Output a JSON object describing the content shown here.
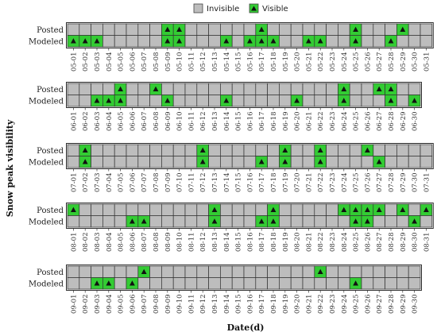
{
  "chart_data": {
    "type": "heatmap",
    "ylabel": "Snow peak visibility",
    "xlabel": "Date(d)",
    "legend": {
      "placement": "top-center",
      "entries": [
        {
          "label": "Invisible",
          "color": "#bdbdbd"
        },
        {
          "label": "Visible",
          "color": "#33cc33"
        }
      ]
    },
    "rows": [
      "Posted",
      "Modeled"
    ],
    "colors": {
      "invisible": "#bdbdbd",
      "visible": "#33cc33",
      "marker": "#111111",
      "border": "#333333"
    },
    "panels": [
      {
        "days": [
          "05-01",
          "05-02",
          "05-03",
          "05-04",
          "05-05",
          "05-06",
          "05-07",
          "05-08",
          "05-09",
          "05-10",
          "05-11",
          "05-12",
          "05-13",
          "05-14",
          "05-15",
          "05-16",
          "05-17",
          "05-18",
          "05-19",
          "05-20",
          "05-21",
          "05-22",
          "05-23",
          "05-24",
          "05-25",
          "05-26",
          "05-27",
          "05-28",
          "05-29",
          "05-30",
          "05-31"
        ],
        "posted_visible": [
          "05-09",
          "05-10",
          "05-17",
          "05-25",
          "05-29"
        ],
        "modeled_visible": [
          "05-01",
          "05-02",
          "05-03",
          "05-09",
          "05-10",
          "05-14",
          "05-16",
          "05-17",
          "05-18",
          "05-21",
          "05-22",
          "05-25",
          "05-28"
        ]
      },
      {
        "days": [
          "06-01",
          "06-02",
          "06-03",
          "06-04",
          "06-05",
          "06-06",
          "06-07",
          "06-08",
          "06-09",
          "06-10",
          "06-11",
          "06-12",
          "06-13",
          "06-14",
          "06-15",
          "06-16",
          "06-17",
          "06-18",
          "06-19",
          "06-20",
          "06-21",
          "06-22",
          "06-23",
          "06-24",
          "06-25",
          "06-26",
          "06-27",
          "06-28",
          "06-29",
          "06-30"
        ],
        "posted_visible": [
          "06-05",
          "06-08",
          "06-24",
          "06-27",
          "06-28"
        ],
        "modeled_visible": [
          "06-03",
          "06-04",
          "06-05",
          "06-09",
          "06-14",
          "06-20",
          "06-24",
          "06-28",
          "06-30"
        ]
      },
      {
        "days": [
          "07-01",
          "07-02",
          "07-03",
          "07-04",
          "07-05",
          "07-06",
          "07-07",
          "07-08",
          "07-09",
          "07-10",
          "07-11",
          "07-12",
          "07-13",
          "07-14",
          "07-15",
          "07-16",
          "07-17",
          "07-18",
          "07-19",
          "07-20",
          "07-21",
          "07-22",
          "07-23",
          "07-24",
          "07-25",
          "07-26",
          "07-27",
          "07-28",
          "07-29",
          "07-30",
          "07-31"
        ],
        "posted_visible": [
          "07-02",
          "07-12",
          "07-19",
          "07-22",
          "07-26"
        ],
        "modeled_visible": [
          "07-02",
          "07-12",
          "07-17",
          "07-19",
          "07-22",
          "07-27"
        ]
      },
      {
        "days": [
          "08-01",
          "08-02",
          "08-03",
          "08-04",
          "08-05",
          "08-06",
          "08-07",
          "08-08",
          "08-09",
          "08-10",
          "08-11",
          "08-12",
          "08-13",
          "08-14",
          "08-15",
          "08-16",
          "08-17",
          "08-18",
          "08-19",
          "08-20",
          "08-21",
          "08-22",
          "08-23",
          "08-24",
          "08-25",
          "08-26",
          "08-27",
          "08-28",
          "08-29",
          "08-30",
          "08-31"
        ],
        "posted_visible": [
          "08-01",
          "08-13",
          "08-18",
          "08-24",
          "08-25",
          "08-26",
          "08-27",
          "08-29",
          "08-31"
        ],
        "modeled_visible": [
          "08-06",
          "08-07",
          "08-13",
          "08-17",
          "08-18",
          "08-25",
          "08-26",
          "08-30"
        ]
      },
      {
        "days": [
          "09-01",
          "09-02",
          "09-03",
          "09-04",
          "09-05",
          "09-06",
          "09-07",
          "09-08",
          "09-09",
          "09-10",
          "09-11",
          "09-12",
          "09-13",
          "09-14",
          "09-15",
          "09-16",
          "09-17",
          "09-18",
          "09-19",
          "09-20",
          "09-21",
          "09-22",
          "09-23",
          "09-24",
          "09-25",
          "09-26",
          "09-27",
          "09-28",
          "09-29",
          "09-30"
        ],
        "posted_visible": [
          "09-07",
          "09-22"
        ],
        "modeled_visible": [
          "09-03",
          "09-04",
          "09-06",
          "09-25"
        ]
      }
    ]
  }
}
